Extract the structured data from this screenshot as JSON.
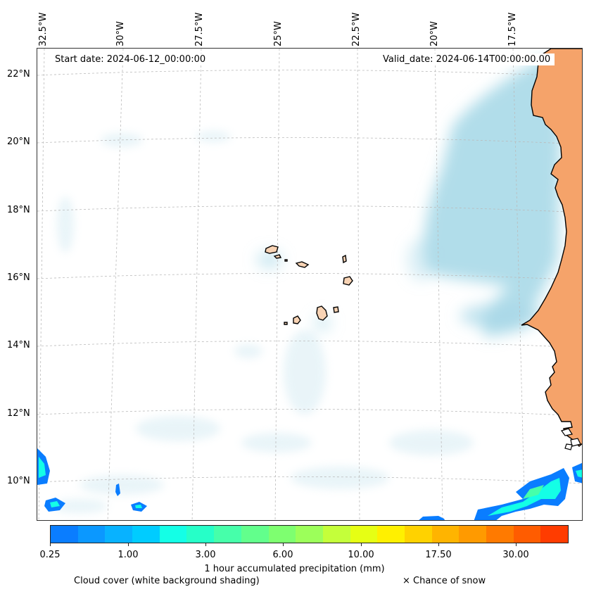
{
  "map": {
    "start_date": "Start date: 2024-06-12_00:00:00",
    "valid_date": "Valid_date: 2024-06-14T00:00:00.00",
    "longitude_labels": [
      "32.5°W",
      "30°W",
      "27.5°W",
      "25°W",
      "22.5°W",
      "20°W",
      "17.5°W"
    ],
    "latitude_labels": [
      "22°N",
      "20°N",
      "18°N",
      "16°N",
      "14°N",
      "12°N",
      "10°N"
    ],
    "region": "Cape Verde islands and West African coast"
  },
  "colorbar": {
    "label": "1 hour accumulated precipitation (mm)",
    "tick_labels": [
      "0.25",
      "1.00",
      "3.00",
      "6.00",
      "10.00",
      "17.50",
      "30.00"
    ],
    "colors": [
      "#0a7dff",
      "#0b98ff",
      "#08b2ff",
      "#00ccff",
      "#14ffe6",
      "#26ffc8",
      "#46ffaa",
      "#62ff8c",
      "#7eff70",
      "#9cff5a",
      "#c4ff3a",
      "#e6ff14",
      "#fff000",
      "#ffd200",
      "#ffb400",
      "#ff9a00",
      "#ff7a00",
      "#ff5c00",
      "#ff3c00"
    ]
  },
  "legend": {
    "cloud_cover": "Cloud cover (white background shading)",
    "snow": "× Chance of snow"
  },
  "colors": {
    "land": "#f5a36a",
    "island": "#f8d3b4",
    "cloud": "#a9d9e8",
    "precip_low": "#0a7dff",
    "precip_mid": "#14ffe6"
  }
}
